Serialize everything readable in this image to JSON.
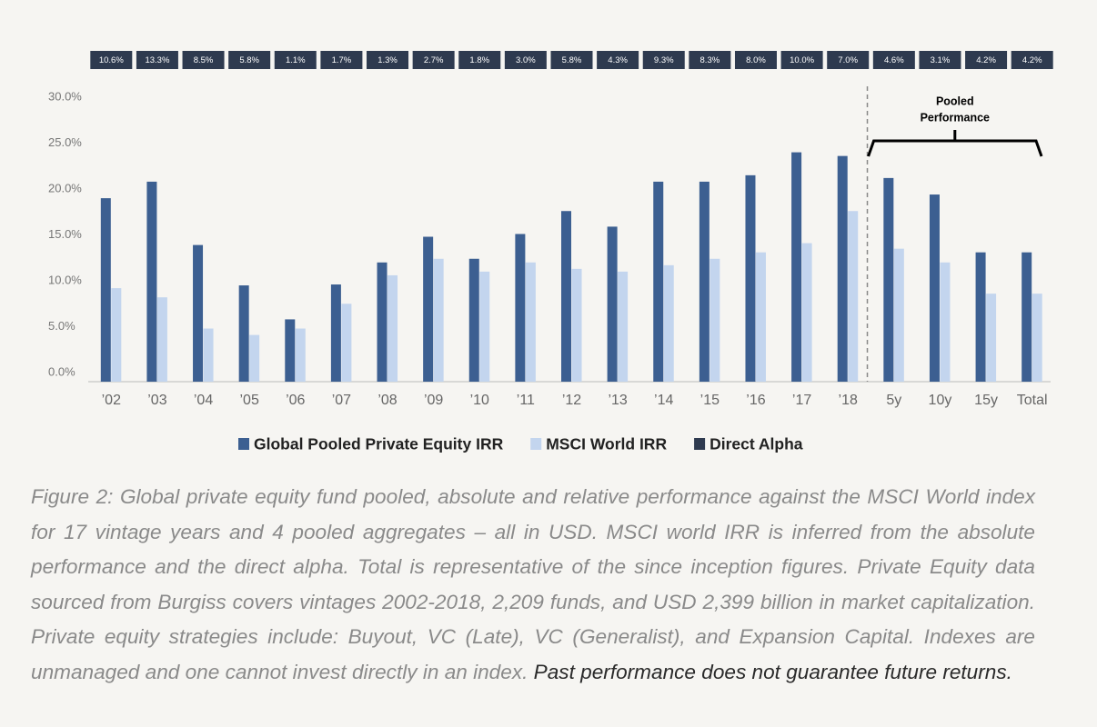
{
  "chart_data": {
    "type": "bar",
    "categories": [
      "’02",
      "’03",
      "’04",
      "’05",
      "’06",
      "’07",
      "’08",
      "’09",
      "’10",
      "’11",
      "’12",
      "’13",
      "’14",
      "’15",
      "’16",
      "’17",
      "’18",
      "5y",
      "10y",
      "15y",
      "Total"
    ],
    "series": [
      {
        "name": "Global Pooled Private Equity IRR",
        "color": "#3c5f91",
        "values": [
          19.0,
          20.8,
          13.9,
          9.5,
          5.8,
          9.6,
          12.0,
          14.8,
          12.4,
          15.1,
          17.6,
          15.9,
          20.8,
          20.8,
          21.5,
          24.0,
          23.6,
          21.2,
          19.4,
          13.1,
          13.1
        ]
      },
      {
        "name": "MSCI World IRR",
        "color": "#c3d5ee",
        "values": [
          9.2,
          8.2,
          4.8,
          4.1,
          4.8,
          7.5,
          10.6,
          12.4,
          11.0,
          12.0,
          11.3,
          11.0,
          11.7,
          12.4,
          13.1,
          14.1,
          17.6,
          13.5,
          12.0,
          8.6,
          8.6
        ]
      },
      {
        "name": "Direct Alpha",
        "color": "#2e3a4f",
        "display": "label-box",
        "values": [
          10.6,
          13.3,
          8.5,
          5.8,
          1.1,
          1.7,
          1.3,
          2.7,
          1.8,
          3.0,
          5.8,
          4.3,
          9.3,
          8.3,
          8.0,
          10.0,
          7.0,
          4.6,
          3.1,
          4.2,
          4.2
        ],
        "value_labels": [
          "10.6%",
          "13.3%",
          "8.5%",
          "5.8%",
          "1.1%",
          "1.7%",
          "1.3%",
          "2.7%",
          "1.8%",
          "3.0%",
          "5.8%",
          "4.3%",
          "9.3%",
          "8.3%",
          "8.0%",
          "10.0%",
          "7.0%",
          "4.6%",
          "3.1%",
          "4.2%",
          "4.2%"
        ]
      }
    ],
    "ylim": [
      0,
      30
    ],
    "yticks": [
      {
        "value": 0,
        "label": "0.0%"
      },
      {
        "value": 5,
        "label": "5.0%"
      },
      {
        "value": 10,
        "label": "10.0%"
      },
      {
        "value": 15,
        "label": "15.0%"
      },
      {
        "value": 20,
        "label": "20.0%"
      },
      {
        "value": 25,
        "label": "25.0%"
      },
      {
        "value": 30,
        "label": "30.0%"
      }
    ],
    "grid": false,
    "legend": "bottom",
    "annotation": [
      "Pooled",
      "Performance"
    ],
    "caption": "Figure 2: Global private equity fund pooled, absolute and relative performance against the MSCI World index for 17 vintage years and 4 pooled aggregates – all in USD. MSCI world IRR is inferred from the absolute performance and the direct alpha. Total is representative of the since inception figures. Private Equity data sourced from Burgiss covers vintages 2002-2018, 2,209 funds, and USD 2,399 billion in market capitalization. Private equity strategies include: Buyout, VC (Late), VC (Generalist), and Expansion Capital. Indexes are unmanaged and one cannot invest directly in an index.",
    "caption_emphasis": "Past performance does not guarantee future returns."
  }
}
